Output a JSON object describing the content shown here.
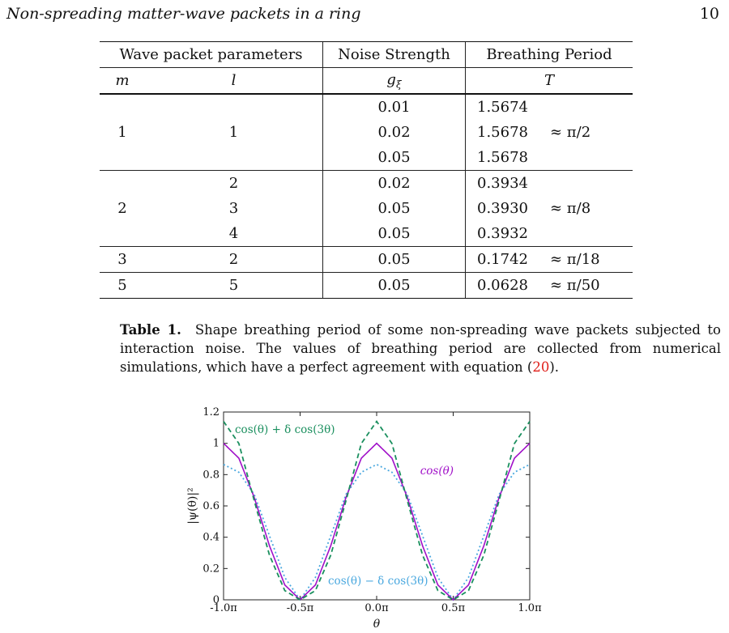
{
  "header": {
    "title": "Non-spreading matter-wave packets in a ring",
    "page": "10"
  },
  "table": {
    "headers": [
      "Wave packet parameters",
      "Noise Strength",
      "Breathing Period"
    ],
    "subheaders": {
      "m": "m",
      "l": "l",
      "g": "g",
      "g_sub": "ξ",
      "t": "T"
    },
    "groups": [
      {
        "m": "1",
        "rows": [
          {
            "l": "",
            "g": "0.01",
            "t": "1.5674"
          },
          {
            "l": "1",
            "g": "0.02",
            "t": "1.5678"
          },
          {
            "l": "",
            "g": "0.05",
            "t": "1.5678"
          }
        ],
        "approx": "≈ π/2"
      },
      {
        "m": "2",
        "rows": [
          {
            "l": "2",
            "g": "0.02",
            "t": "0.3934"
          },
          {
            "l": "3",
            "g": "0.05",
            "t": "0.3930"
          },
          {
            "l": "4",
            "g": "0.05",
            "t": "0.3932"
          }
        ],
        "approx": "≈ π/8"
      },
      {
        "m": "3",
        "rows": [
          {
            "l": "2",
            "g": "0.05",
            "t": "0.1742"
          }
        ],
        "approx": "≈ π/18"
      },
      {
        "m": "5",
        "rows": [
          {
            "l": "5",
            "g": "0.05",
            "t": "0.0628"
          }
        ],
        "approx": "≈ π/50"
      }
    ]
  },
  "caption": {
    "label": "Table 1.",
    "text": "Shape breathing period of some non-spreading wave packets subjected to interaction noise.  The values of breathing period are collected from numerical simulations, which have a perfect agreement with equation (",
    "ref": "20",
    "tail": ")."
  },
  "chart_data": {
    "type": "line",
    "xlabel": "θ",
    "ylabel": "|ψ(θ)|²",
    "xlim": [
      -1.0,
      1.0
    ],
    "ylim": [
      0,
      1.2
    ],
    "x_unit": "π",
    "xticks": [
      -1.0,
      -0.5,
      0.0,
      0.5,
      1.0
    ],
    "xtick_labels": [
      "-1.0π",
      "-0.5π",
      "0.0π",
      "0.5π",
      "1.0π"
    ],
    "yticks": [
      0,
      0.2,
      0.4,
      0.6,
      0.8,
      1,
      1.2
    ],
    "ytick_labels": [
      "0",
      "0.2",
      "0.4",
      "0.6",
      "0.8",
      "1",
      "1.2"
    ],
    "grid": false,
    "series": [
      {
        "name": "cos(θ)",
        "color": "#a010c8",
        "style": "solid",
        "x": [
          -1.0,
          -0.9,
          -0.8,
          -0.7,
          -0.6,
          -0.5,
          -0.4,
          -0.3,
          -0.2,
          -0.1,
          0.0,
          0.1,
          0.2,
          0.3,
          0.4,
          0.5,
          0.6,
          0.7,
          0.8,
          0.9,
          1.0
        ],
        "y": [
          1.0,
          0.905,
          0.655,
          0.345,
          0.095,
          0.0,
          0.095,
          0.345,
          0.655,
          0.905,
          1.0,
          0.905,
          0.655,
          0.345,
          0.095,
          0.0,
          0.095,
          0.345,
          0.655,
          0.905,
          1.0
        ]
      },
      {
        "name": "cos(θ) + δ cos(3θ)",
        "color": "#1a8f5e",
        "style": "dashed",
        "x": [
          -1.0,
          -0.9,
          -0.8,
          -0.7,
          -0.6,
          -0.5,
          -0.4,
          -0.3,
          -0.2,
          -0.1,
          0.0,
          0.1,
          0.2,
          0.3,
          0.4,
          0.5,
          0.6,
          0.7,
          0.8,
          0.9,
          1.0
        ],
        "y": [
          1.14,
          0.999,
          0.635,
          0.285,
          0.059,
          0.0,
          0.059,
          0.285,
          0.635,
          0.999,
          1.14,
          0.999,
          0.635,
          0.285,
          0.059,
          0.0,
          0.059,
          0.285,
          0.635,
          0.999,
          1.14
        ]
      },
      {
        "name": "cos(θ) − δ cos(3θ)",
        "color": "#4aa8df",
        "style": "dotted",
        "x": [
          -1.0,
          -0.9,
          -0.8,
          -0.7,
          -0.6,
          -0.5,
          -0.4,
          -0.3,
          -0.2,
          -0.1,
          0.0,
          0.1,
          0.2,
          0.3,
          0.4,
          0.5,
          0.6,
          0.7,
          0.8,
          0.9,
          1.0
        ],
        "y": [
          0.865,
          0.815,
          0.674,
          0.409,
          0.143,
          0.0,
          0.143,
          0.409,
          0.674,
          0.815,
          0.865,
          0.815,
          0.674,
          0.409,
          0.143,
          0.0,
          0.143,
          0.409,
          0.674,
          0.815,
          0.865
        ]
      }
    ],
    "annotations": [
      "cos(θ) + δ cos(3θ)",
      "cos(θ)",
      "cos(θ) − δ cos(3θ)"
    ]
  }
}
